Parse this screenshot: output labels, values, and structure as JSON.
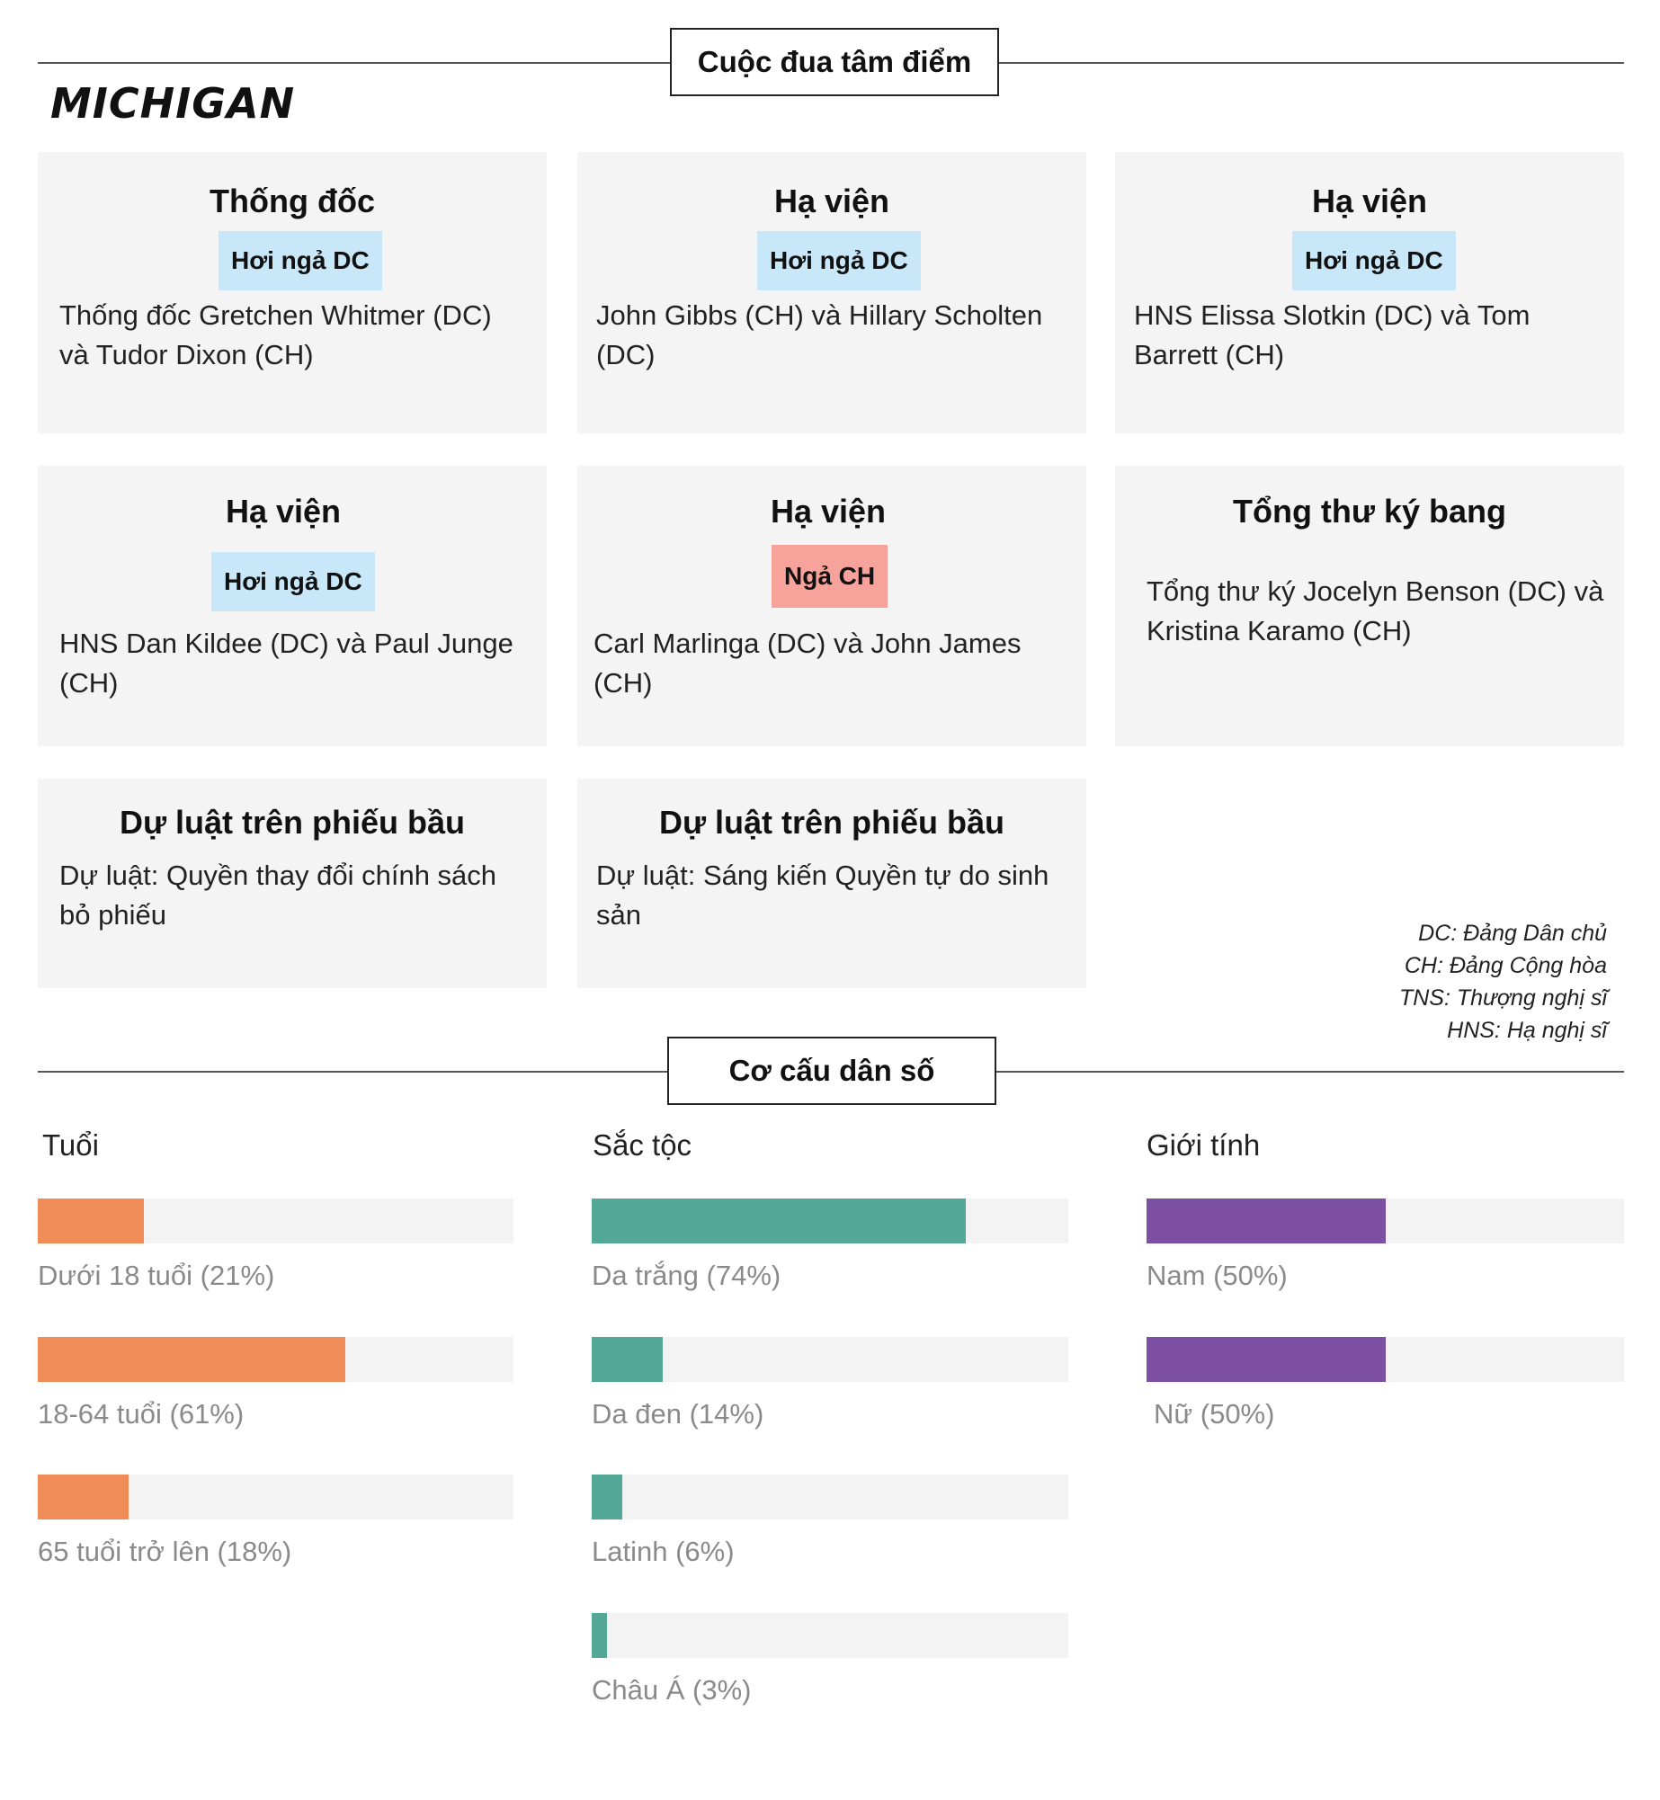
{
  "header": {
    "section_title": "Cuộc đua tâm điểm",
    "state": "MICHIGAN"
  },
  "races": [
    {
      "title": "Thống đốc",
      "badge": "Hơi ngả DC",
      "badge_type": "lean-dc",
      "text": "Thống đốc Gretchen Whitmer (DC) và Tudor Dixon (CH)"
    },
    {
      "title": "Hạ viện",
      "badge": "Hơi ngả DC",
      "badge_type": "lean-dc",
      "text": "John Gibbs (CH) và Hillary Scholten (DC)"
    },
    {
      "title": "Hạ viện",
      "badge": "Hơi ngả DC",
      "badge_type": "lean-dc",
      "text": "HNS Elissa Slotkin (DC) và Tom Barrett (CH)"
    },
    {
      "title": "Hạ viện",
      "badge": "Hơi ngả DC",
      "badge_type": "lean-dc",
      "text": "HNS Dan Kildee (DC) và Paul Junge (CH)"
    },
    {
      "title": "Hạ viện",
      "badge": "Ngả CH",
      "badge_type": "lean-ch",
      "text": "Carl Marlinga (DC) và John James (CH)"
    },
    {
      "title": "Tổng thư ký bang",
      "text": "Tổng thư ký Jocelyn Benson (DC) và Kristina Karamo (CH)"
    },
    {
      "title": "Dự luật trên phiếu bầu",
      "text": "Dự luật: Quyền thay đổi chính sách bỏ phiếu"
    },
    {
      "title": "Dự luật trên phiếu bầu",
      "text": "Dự luật: Sáng kiến Quyền tự do sinh sản"
    }
  ],
  "legend": [
    "DC: Đảng Dân chủ",
    "CH: Đảng Cộng hòa",
    "TNS: Thượng nghị sĩ",
    "HNS: Hạ nghị sĩ"
  ],
  "colors": {
    "age": "#ef8c58",
    "race": "#54a898",
    "gender": "#7d4fa3",
    "track": "#f3f3f3",
    "lean_dc": "#c8e7f9",
    "lean_ch": "#f7a29a"
  },
  "demographics": {
    "section_title": "Cơ cấu dân số"
  },
  "chart_data": [
    {
      "type": "bar",
      "title": "Tuổi",
      "unit": "%",
      "xlim": [
        0,
        100
      ],
      "categories": [
        "Dưới 18 tuổi (21%)",
        "18-64 tuổi (61%)",
        "65 tuổi trở lên (18%)"
      ],
      "values": [
        21,
        61,
        18
      ]
    },
    {
      "type": "bar",
      "title": "Sắc tộc",
      "unit": "%",
      "xlim": [
        0,
        100
      ],
      "categories": [
        "Da trắng (74%)",
        "Da đen (14%)",
        "Latinh (6%)",
        "Châu Á (3%)"
      ],
      "values": [
        74,
        14,
        6,
        3
      ]
    },
    {
      "type": "bar",
      "title": "Giới tính",
      "unit": "%",
      "xlim": [
        0,
        100
      ],
      "categories": [
        "Nam (50%)",
        "Nữ (50%)"
      ],
      "values": [
        50,
        50
      ]
    }
  ]
}
